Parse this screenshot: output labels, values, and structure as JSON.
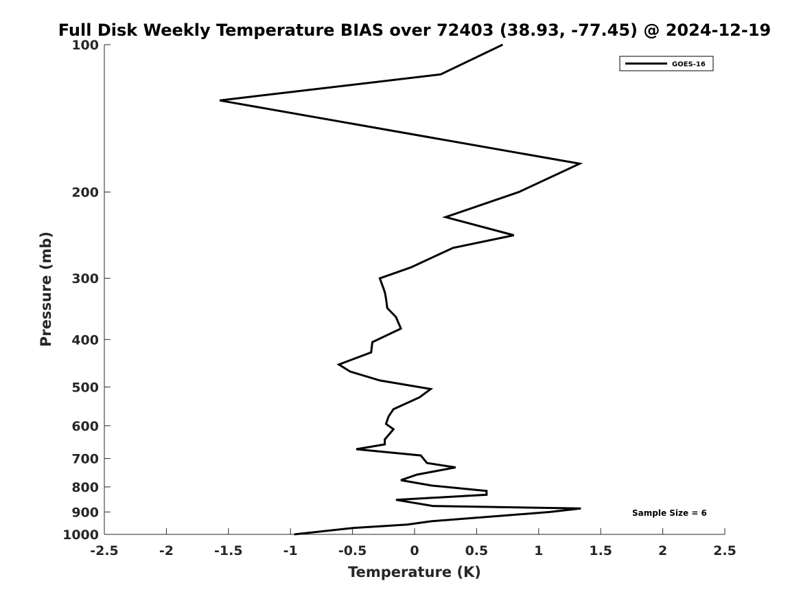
{
  "chart_data": {
    "type": "line",
    "title": "Full Disk Weekly Temperature BIAS over 72403 (38.93, -77.45) @ 2024-12-19",
    "xlabel": "Temperature (K)",
    "ylabel": "Pressure (mb)",
    "xlim": [
      -2.5,
      2.5
    ],
    "ylim": [
      100,
      1000
    ],
    "yscale": "log",
    "y_reversed": true,
    "xticks": [
      -2.5,
      -2,
      -1.5,
      -1,
      -0.5,
      0,
      0.5,
      1,
      1.5,
      2,
      2.5
    ],
    "xtick_labels": [
      "-2.5",
      "-2",
      "-1.5",
      "-1",
      "-0.5",
      "0",
      "0.5",
      "1",
      "1.5",
      "2",
      "2.5"
    ],
    "yticks": [
      100,
      200,
      300,
      400,
      500,
      600,
      700,
      800,
      900,
      1000
    ],
    "ytick_labels": [
      "100",
      "200",
      "300",
      "400",
      "500",
      "600",
      "700",
      "800",
      "900",
      "1000"
    ],
    "grid": false,
    "legend_position": "top-right",
    "annotation": "Sample Size = 6",
    "line_color": "#000000",
    "series": [
      {
        "name": "GOES-16",
        "x": [
          0.71,
          0.21,
          -1.57,
          1.33,
          0.84,
          0.25,
          0.8,
          0.31,
          -0.03,
          -0.28,
          -0.24,
          -0.23,
          -0.22,
          -0.15,
          -0.11,
          -0.34,
          -0.35,
          -0.61,
          -0.52,
          -0.28,
          0.13,
          0.04,
          -0.17,
          -0.21,
          -0.23,
          -0.17,
          -0.24,
          -0.24,
          -0.47,
          0.05,
          0.1,
          0.33,
          0.02,
          -0.11,
          0.14,
          0.58,
          0.58,
          -0.15,
          0.15,
          1.34,
          1.09,
          0.14,
          -0.06,
          -0.49,
          -0.97
        ],
        "y": [
          100,
          115,
          130,
          175,
          200,
          225,
          245,
          260,
          285,
          300,
          320,
          330,
          345,
          360,
          380,
          405,
          425,
          450,
          465,
          485,
          505,
          525,
          555,
          575,
          595,
          610,
          640,
          655,
          670,
          690,
          715,
          730,
          755,
          775,
          795,
          815,
          830,
          850,
          875,
          885,
          900,
          940,
          955,
          970,
          1000
        ]
      }
    ]
  }
}
